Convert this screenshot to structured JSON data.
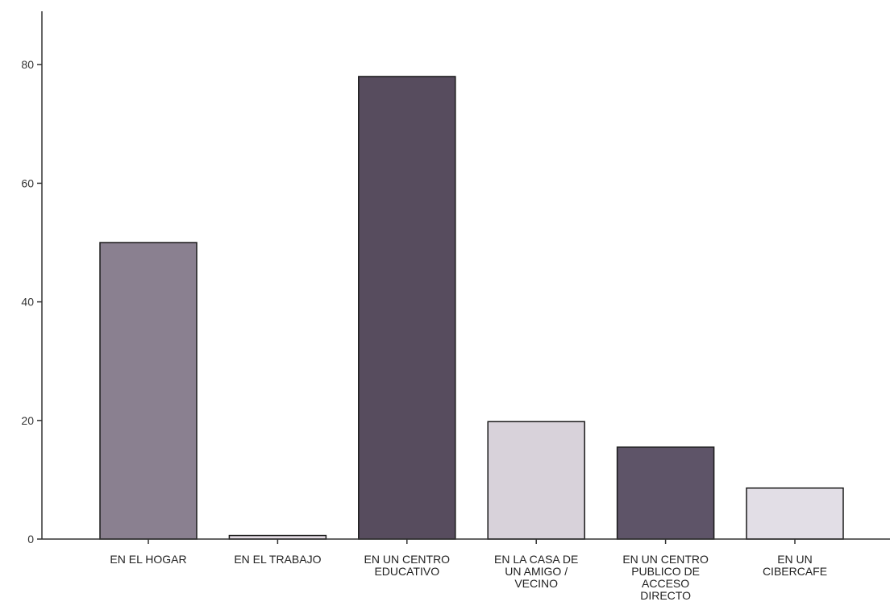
{
  "chart_data": {
    "type": "bar",
    "title": "",
    "xlabel": "",
    "ylabel": "",
    "categories": [
      [
        "EN EL HOGAR"
      ],
      [
        "EN EL TRABAJO"
      ],
      [
        "EN UN CENTRO",
        "EDUCATIVO"
      ],
      [
        "EN LA CASA DE",
        "UN AMIGO /",
        "VECINO"
      ],
      [
        "EN UN CENTRO",
        "PUBLICO DE",
        "ACCESO",
        "DIRECTO"
      ],
      [
        "EN UN",
        "CIBERCAFE"
      ]
    ],
    "values": [
      50,
      0.6,
      78,
      19.8,
      15.5,
      8.6
    ],
    "bar_colors": [
      "#8a8090",
      "#e4dce4",
      "#574c5e",
      "#d8d2da",
      "#5e5468",
      "#e2dee6"
    ],
    "ylim": [
      0,
      89
    ],
    "yticks": [
      0,
      20,
      40,
      60,
      80
    ],
    "grid": false,
    "legend": "none"
  }
}
